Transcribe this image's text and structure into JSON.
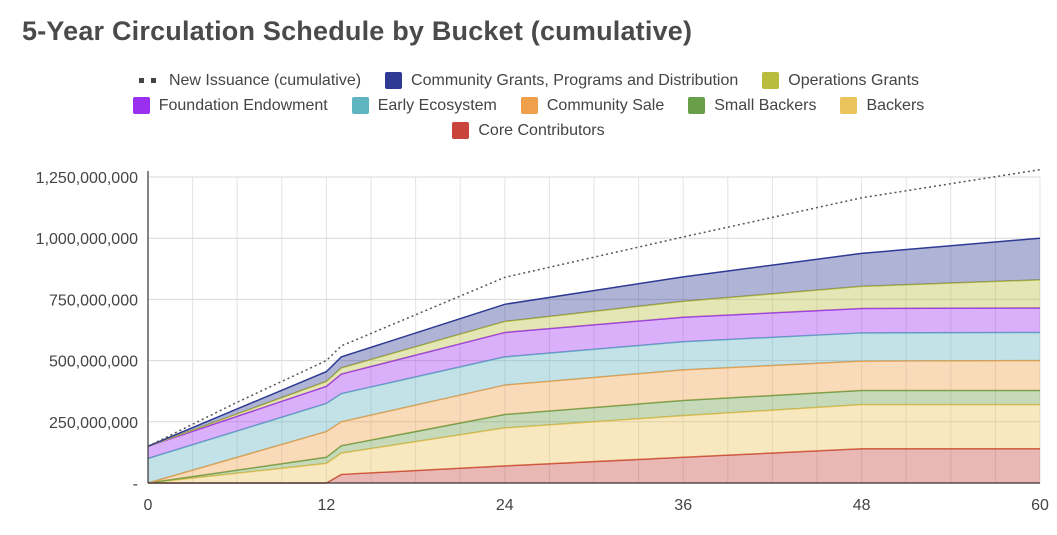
{
  "chart_data": {
    "type": "area",
    "stacked": true,
    "title": "5-Year Circulation Schedule by Bucket (cumulative)",
    "xlabel": "",
    "ylabel": "",
    "x_ticks": [
      0,
      12,
      24,
      36,
      48,
      60
    ],
    "y_ticks": [
      0,
      250000000,
      500000000,
      750000000,
      1000000000,
      1250000000
    ],
    "y_tick_labels": [
      "-",
      "250,000,000",
      "500,000,000",
      "750,000,000",
      "1,000,000,000",
      "1,250,000,000"
    ],
    "xlim": [
      0,
      60
    ],
    "ylim": [
      0,
      1250000000
    ],
    "grid": true,
    "legend_position": "top",
    "x": [
      0,
      12,
      13,
      24,
      36,
      48,
      60
    ],
    "series": [
      {
        "name": "Core Contributors",
        "color": "#c9453b",
        "values": [
          0,
          0,
          35000000,
          70000000,
          105000000,
          140000000,
          140000000
        ]
      },
      {
        "name": "Backers",
        "color": "#eac35a",
        "values": [
          0,
          80000000,
          87000000,
          155000000,
          170000000,
          180000000,
          180000000
        ]
      },
      {
        "name": "Small Backers",
        "color": "#6a9f4a",
        "values": [
          0,
          25000000,
          30000000,
          55000000,
          62000000,
          58000000,
          58000000
        ]
      },
      {
        "name": "Community Sale",
        "color": "#f0a04a",
        "values": [
          0,
          105000000,
          98000000,
          120000000,
          125000000,
          120000000,
          122000000
        ]
      },
      {
        "name": "Early Ecosystem",
        "color": "#5eb4bf",
        "values": [
          100000000,
          115000000,
          115000000,
          115000000,
          115000000,
          115000000,
          115000000
        ]
      },
      {
        "name": "Foundation Endowment",
        "color": "#9a2ff0",
        "values": [
          50000000,
          70000000,
          80000000,
          100000000,
          100000000,
          100000000,
          100000000
        ]
      },
      {
        "name": "Operations Grants",
        "color": "#b8bd3e",
        "values": [
          0,
          20000000,
          25000000,
          45000000,
          65000000,
          90000000,
          115000000
        ]
      },
      {
        "name": "Community Grants, Programs and Distribution",
        "color": "#2e3a93",
        "values": [
          0,
          40000000,
          45000000,
          70000000,
          100000000,
          135000000,
          170000000
        ]
      }
    ],
    "line_series": {
      "name": "New Issuance (cumulative)",
      "color": "#555555",
      "x": [
        0,
        6,
        12,
        13,
        24,
        36,
        48,
        60
      ],
      "values": [
        150000000,
        330000000,
        500000000,
        560000000,
        840000000,
        1005000000,
        1165000000,
        1280000000
      ]
    }
  },
  "legend": {
    "rows": [
      [
        {
          "label": "New Issuance (cumulative)",
          "color": "#444444",
          "icon": "dotted-line-icon"
        },
        {
          "label": "Community Grants, Programs and Distribution",
          "color": "#2e3a93",
          "icon": "square-swatch"
        },
        {
          "label": "Operations Grants",
          "color": "#b8bd3e",
          "icon": "square-swatch"
        }
      ],
      [
        {
          "label": "Foundation Endowment",
          "color": "#9a2ff0",
          "icon": "square-swatch"
        },
        {
          "label": "Early Ecosystem",
          "color": "#5eb4bf",
          "icon": "square-swatch"
        },
        {
          "label": "Community Sale",
          "color": "#f0a04a",
          "icon": "square-swatch"
        },
        {
          "label": "Small Backers",
          "color": "#6a9f4a",
          "icon": "square-swatch"
        },
        {
          "label": "Backers",
          "color": "#eac35a",
          "icon": "square-swatch"
        }
      ],
      [
        {
          "label": "Core Contributors",
          "color": "#c9453b",
          "icon": "square-swatch"
        }
      ]
    ]
  }
}
